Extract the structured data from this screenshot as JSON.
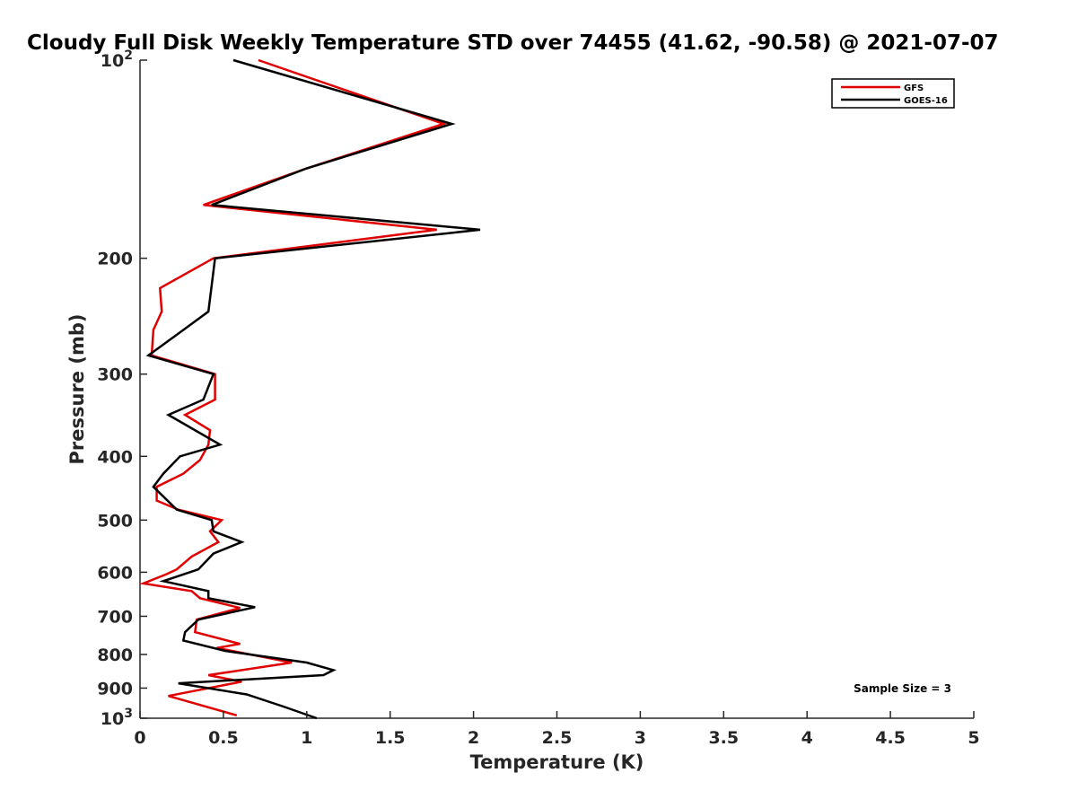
{
  "chart_data": {
    "type": "line",
    "title": "Cloudy Full Disk Weekly Temperature STD over 74455 (41.62, -90.58) @ 2021-07-07",
    "xlabel": "Temperature (K)",
    "ylabel": "Pressure (mb)",
    "xlim": [
      0,
      5
    ],
    "ylim": [
      100,
      1000
    ],
    "y_scale": "log",
    "y_reversed": true,
    "x_ticks": [
      {
        "value": 0,
        "label": "0"
      },
      {
        "value": 0.5,
        "label": "0.5"
      },
      {
        "value": 1,
        "label": "1"
      },
      {
        "value": 1.5,
        "label": "1.5"
      },
      {
        "value": 2,
        "label": "2"
      },
      {
        "value": 2.5,
        "label": "2.5"
      },
      {
        "value": 3,
        "label": "3"
      },
      {
        "value": 3.5,
        "label": "3.5"
      },
      {
        "value": 4,
        "label": "4"
      },
      {
        "value": 4.5,
        "label": "4.5"
      },
      {
        "value": 5,
        "label": "5"
      }
    ],
    "y_ticks": [
      {
        "value": 100,
        "base": "10",
        "exp": "2"
      },
      {
        "value": 200,
        "label": "200"
      },
      {
        "value": 300,
        "label": "300"
      },
      {
        "value": 400,
        "label": "400"
      },
      {
        "value": 500,
        "label": "500"
      },
      {
        "value": 600,
        "label": "600"
      },
      {
        "value": 700,
        "label": "700"
      },
      {
        "value": 800,
        "label": "800"
      },
      {
        "value": 900,
        "label": "900"
      },
      {
        "value": 1000,
        "base": "10",
        "exp": "3"
      }
    ],
    "legend": {
      "position": "top-right"
    },
    "annotation": "Sample Size = 3",
    "series": [
      {
        "name": "GFS",
        "color": "#e00000",
        "points": [
          [
            0.71,
            100
          ],
          [
            1.82,
            125
          ],
          [
            1.0,
            146
          ],
          [
            0.38,
            166
          ],
          [
            1.78,
            181
          ],
          [
            0.44,
            200
          ],
          [
            0.12,
            222
          ],
          [
            0.13,
            241
          ],
          [
            0.08,
            257
          ],
          [
            0.07,
            281
          ],
          [
            0.45,
            300
          ],
          [
            0.45,
            328
          ],
          [
            0.27,
            346
          ],
          [
            0.42,
            365
          ],
          [
            0.41,
            384
          ],
          [
            0.36,
            405
          ],
          [
            0.26,
            425
          ],
          [
            0.1,
            445
          ],
          [
            0.1,
            467
          ],
          [
            0.23,
            482
          ],
          [
            0.49,
            500
          ],
          [
            0.42,
            520
          ],
          [
            0.47,
            540
          ],
          [
            0.31,
            568
          ],
          [
            0.22,
            594
          ],
          [
            0.16,
            604
          ],
          [
            0.02,
            624
          ],
          [
            0.31,
            641
          ],
          [
            0.36,
            657
          ],
          [
            0.6,
            680
          ],
          [
            0.34,
            708
          ],
          [
            0.33,
            740
          ],
          [
            0.6,
            771
          ],
          [
            0.46,
            782
          ],
          [
            0.91,
            823
          ],
          [
            0.41,
            860
          ],
          [
            0.61,
            880
          ],
          [
            0.17,
            925
          ],
          [
            0.58,
            990
          ]
        ]
      },
      {
        "name": "GOES-16",
        "color": "#000000",
        "points": [
          [
            0.56,
            100
          ],
          [
            1.87,
            125
          ],
          [
            1.0,
            146
          ],
          [
            0.43,
            166
          ],
          [
            2.04,
            181
          ],
          [
            0.45,
            200
          ],
          [
            0.41,
            241
          ],
          [
            0.26,
            257
          ],
          [
            0.05,
            281
          ],
          [
            0.44,
            300
          ],
          [
            0.38,
            328
          ],
          [
            0.17,
            346
          ],
          [
            0.48,
            384
          ],
          [
            0.24,
            400
          ],
          [
            0.14,
            425
          ],
          [
            0.08,
            445
          ],
          [
            0.22,
            482
          ],
          [
            0.43,
            500
          ],
          [
            0.44,
            520
          ],
          [
            0.61,
            540
          ],
          [
            0.44,
            562
          ],
          [
            0.35,
            594
          ],
          [
            0.14,
            619
          ],
          [
            0.41,
            641
          ],
          [
            0.41,
            657
          ],
          [
            0.69,
            678
          ],
          [
            0.35,
            708
          ],
          [
            0.27,
            740
          ],
          [
            0.26,
            762
          ],
          [
            0.51,
            790
          ],
          [
            1.0,
            823
          ],
          [
            1.16,
            845
          ],
          [
            1.1,
            860
          ],
          [
            0.23,
            885
          ],
          [
            0.64,
            920
          ],
          [
            0.86,
            960
          ],
          [
            1.06,
            1000
          ]
        ]
      }
    ]
  }
}
